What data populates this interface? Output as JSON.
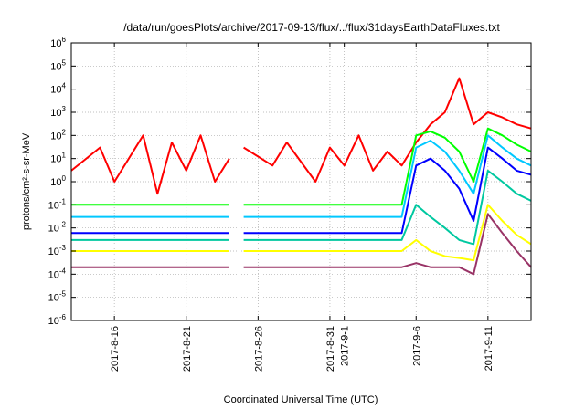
{
  "chart_data": {
    "type": "line",
    "title": "/data/run/goesPlots/archive/2017-09-13/flux/../flux/31daysEarthDataFluxes.txt",
    "xlabel": "Coordinated Universal Time (UTC)",
    "ylabel": "protons/cm²-s-sr-MeV",
    "x_range": [
      "2017-08-13",
      "2017-09-14"
    ],
    "ylim": [
      1e-06,
      1000000.0
    ],
    "yscale": "log",
    "grid": true,
    "x_ticks": [
      "2017-8-16",
      "2017-8-21",
      "2017-8-26",
      "2017-8-31",
      "2017-9-1",
      "2017-9-6",
      "2017-9-11"
    ],
    "y_ticks": [
      {
        "base": "10",
        "exp": "-6"
      },
      {
        "base": "10",
        "exp": "-5"
      },
      {
        "base": "10",
        "exp": "-4"
      },
      {
        "base": "10",
        "exp": "-3"
      },
      {
        "base": "10",
        "exp": "-2"
      },
      {
        "base": "10",
        "exp": "-1"
      },
      {
        "base": "10",
        "exp": "0"
      },
      {
        "base": "10",
        "exp": "1"
      },
      {
        "base": "10",
        "exp": "2"
      },
      {
        "base": "10",
        "exp": "3"
      },
      {
        "base": "10",
        "exp": "4"
      },
      {
        "base": "10",
        "exp": "5"
      },
      {
        "base": "10",
        "exp": "6"
      }
    ],
    "data_gap": [
      "2017-08-24",
      "2017-08-25"
    ],
    "series": [
      {
        "color": "#ff0000",
        "x": [
          "2017-08-13",
          "2017-08-15",
          "2017-08-16",
          "2017-08-18",
          "2017-08-19",
          "2017-08-20",
          "2017-08-21",
          "2017-08-22",
          "2017-08-23",
          "2017-08-24",
          "2017-08-25",
          "2017-08-27",
          "2017-08-28",
          "2017-08-30",
          "2017-08-31",
          "2017-09-01",
          "2017-09-02",
          "2017-09-03",
          "2017-09-04",
          "2017-09-05",
          "2017-09-06",
          "2017-09-07",
          "2017-09-08",
          "2017-09-09",
          "2017-09-10",
          "2017-09-11",
          "2017-09-12",
          "2017-09-13",
          "2017-09-14"
        ],
        "y": [
          3,
          30,
          1,
          100,
          0.3,
          50,
          3,
          100,
          1,
          10,
          30,
          5,
          50,
          1,
          30,
          5,
          100,
          3,
          20,
          5,
          50,
          300,
          1000,
          30000,
          300,
          1000,
          600,
          300,
          200
        ]
      },
      {
        "color": "#00ff00",
        "x": [
          "2017-08-13",
          "2017-08-24",
          "2017-08-25",
          "2017-09-05",
          "2017-09-06",
          "2017-09-07",
          "2017-09-08",
          "2017-09-09",
          "2017-09-10",
          "2017-09-11",
          "2017-09-12",
          "2017-09-13",
          "2017-09-14"
        ],
        "y": [
          0.1,
          0.1,
          0.1,
          0.1,
          100,
          150,
          80,
          20,
          1,
          200,
          100,
          40,
          20
        ]
      },
      {
        "color": "#00c8ff",
        "x": [
          "2017-08-13",
          "2017-08-24",
          "2017-08-25",
          "2017-09-05",
          "2017-09-06",
          "2017-09-07",
          "2017-09-08",
          "2017-09-09",
          "2017-09-10",
          "2017-09-11",
          "2017-09-12",
          "2017-09-13",
          "2017-09-14"
        ],
        "y": [
          0.03,
          0.03,
          0.03,
          0.03,
          30,
          60,
          20,
          3,
          0.3,
          100,
          30,
          10,
          5
        ]
      },
      {
        "color": "#0000ff",
        "x": [
          "2017-08-13",
          "2017-08-24",
          "2017-08-25",
          "2017-09-05",
          "2017-09-06",
          "2017-09-07",
          "2017-09-08",
          "2017-09-09",
          "2017-09-10",
          "2017-09-11",
          "2017-09-12",
          "2017-09-13",
          "2017-09-14"
        ],
        "y": [
          0.006,
          0.006,
          0.006,
          0.006,
          5,
          10,
          3,
          0.5,
          0.02,
          30,
          10,
          3,
          2
        ]
      },
      {
        "color": "#00c8a0",
        "x": [
          "2017-08-13",
          "2017-08-24",
          "2017-08-25",
          "2017-09-05",
          "2017-09-06",
          "2017-09-07",
          "2017-09-08",
          "2017-09-09",
          "2017-09-10",
          "2017-09-11",
          "2017-09-12",
          "2017-09-13",
          "2017-09-14"
        ],
        "y": [
          0.003,
          0.003,
          0.003,
          0.003,
          0.1,
          0.03,
          0.01,
          0.003,
          0.002,
          3,
          1,
          0.3,
          0.15
        ]
      },
      {
        "color": "#ffff00",
        "x": [
          "2017-08-13",
          "2017-08-24",
          "2017-08-25",
          "2017-09-05",
          "2017-09-06",
          "2017-09-07",
          "2017-09-08",
          "2017-09-09",
          "2017-09-10",
          "2017-09-11",
          "2017-09-12",
          "2017-09-13",
          "2017-09-14"
        ],
        "y": [
          0.001,
          0.001,
          0.001,
          0.001,
          0.003,
          0.001,
          0.0006,
          0.0005,
          0.0004,
          0.1,
          0.02,
          0.005,
          0.002
        ]
      },
      {
        "color": "#993366",
        "x": [
          "2017-08-13",
          "2017-08-24",
          "2017-08-25",
          "2017-09-05",
          "2017-09-06",
          "2017-09-07",
          "2017-09-08",
          "2017-09-09",
          "2017-09-10",
          "2017-09-11",
          "2017-09-12",
          "2017-09-13",
          "2017-09-14"
        ],
        "y": [
          0.0002,
          0.0002,
          0.0002,
          0.0002,
          0.0003,
          0.0002,
          0.0002,
          0.0002,
          0.0001,
          0.04,
          0.006,
          0.001,
          0.0002
        ]
      }
    ]
  }
}
